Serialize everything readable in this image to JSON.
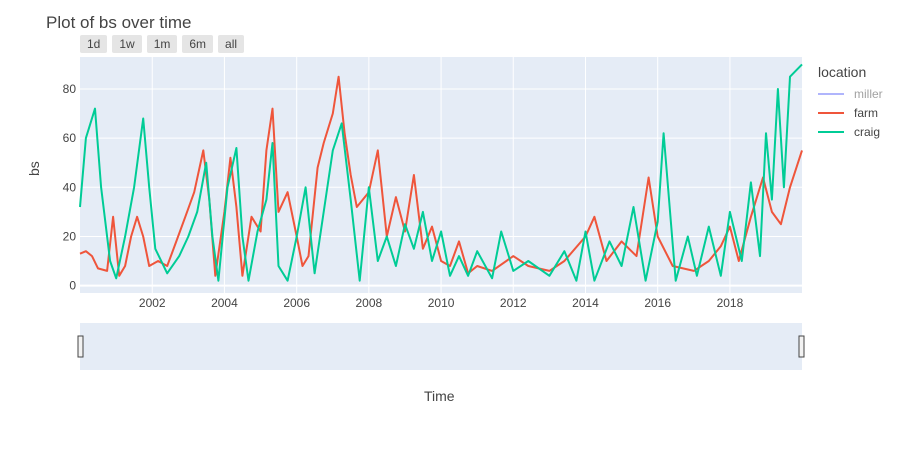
{
  "chart_data": {
    "type": "line",
    "title": "Plot of bs over time",
    "xlabel": "Time",
    "ylabel": "bs",
    "xlim": [
      "2000-01-01",
      "2019-12-31"
    ],
    "ylim": [
      -3,
      93
    ],
    "x_ticks": [
      "2002",
      "2004",
      "2006",
      "2008",
      "2010",
      "2012",
      "2014",
      "2016",
      "2018"
    ],
    "y_ticks": [
      0,
      20,
      40,
      60,
      80
    ],
    "grid": true,
    "legend_title": "location",
    "legend_position": "right",
    "range_buttons": [
      "1d",
      "1w",
      "1m",
      "6m",
      "all"
    ],
    "range_slider": true,
    "series": [
      {
        "name": "miller",
        "color": "#636efa",
        "visible": false,
        "points": []
      },
      {
        "name": "farm",
        "color": "#ef553b",
        "visible": true,
        "points": [
          [
            "2000-01-01",
            13
          ],
          [
            "2000-03-01",
            14
          ],
          [
            "2000-05-01",
            12
          ],
          [
            "2000-07-01",
            7
          ],
          [
            "2000-10-01",
            6
          ],
          [
            "2000-12-01",
            28
          ],
          [
            "2001-02-01",
            4
          ],
          [
            "2001-04-01",
            8
          ],
          [
            "2001-06-01",
            20
          ],
          [
            "2001-08-01",
            28
          ],
          [
            "2001-10-01",
            20
          ],
          [
            "2001-12-01",
            8
          ],
          [
            "2002-03-01",
            10
          ],
          [
            "2002-06-01",
            8
          ],
          [
            "2002-09-01",
            18
          ],
          [
            "2002-12-01",
            28
          ],
          [
            "2003-03-01",
            38
          ],
          [
            "2003-06-01",
            55
          ],
          [
            "2003-08-01",
            35
          ],
          [
            "2003-10-01",
            4
          ],
          [
            "2004-01-01",
            30
          ],
          [
            "2004-03-01",
            52
          ],
          [
            "2004-05-01",
            32
          ],
          [
            "2004-07-01",
            4
          ],
          [
            "2004-10-01",
            28
          ],
          [
            "2005-01-01",
            22
          ],
          [
            "2005-03-01",
            55
          ],
          [
            "2005-05-01",
            72
          ],
          [
            "2005-07-01",
            30
          ],
          [
            "2005-10-01",
            38
          ],
          [
            "2006-01-01",
            20
          ],
          [
            "2006-03-01",
            8
          ],
          [
            "2006-05-01",
            12
          ],
          [
            "2006-08-01",
            48
          ],
          [
            "2006-10-01",
            58
          ],
          [
            "2007-01-01",
            70
          ],
          [
            "2007-03-01",
            85
          ],
          [
            "2007-05-01",
            62
          ],
          [
            "2007-07-01",
            45
          ],
          [
            "2007-09-01",
            32
          ],
          [
            "2008-01-01",
            38
          ],
          [
            "2008-04-01",
            55
          ],
          [
            "2008-07-01",
            20
          ],
          [
            "2008-10-01",
            36
          ],
          [
            "2009-01-01",
            22
          ],
          [
            "2009-04-01",
            45
          ],
          [
            "2009-07-01",
            15
          ],
          [
            "2009-10-01",
            24
          ],
          [
            "2010-01-01",
            10
          ],
          [
            "2010-04-01",
            8
          ],
          [
            "2010-07-01",
            18
          ],
          [
            "2010-10-01",
            5
          ],
          [
            "2011-01-01",
            8
          ],
          [
            "2011-06-01",
            6
          ],
          [
            "2012-01-01",
            12
          ],
          [
            "2012-06-01",
            8
          ],
          [
            "2013-01-01",
            6
          ],
          [
            "2013-06-01",
            10
          ],
          [
            "2014-01-01",
            20
          ],
          [
            "2014-04-01",
            28
          ],
          [
            "2014-08-01",
            10
          ],
          [
            "2015-01-01",
            18
          ],
          [
            "2015-06-01",
            12
          ],
          [
            "2015-10-01",
            44
          ],
          [
            "2016-01-01",
            20
          ],
          [
            "2016-06-01",
            8
          ],
          [
            "2017-01-01",
            6
          ],
          [
            "2017-06-01",
            10
          ],
          [
            "2017-10-01",
            16
          ],
          [
            "2018-01-01",
            24
          ],
          [
            "2018-04-01",
            10
          ],
          [
            "2018-08-01",
            28
          ],
          [
            "2018-12-01",
            44
          ],
          [
            "2019-03-01",
            30
          ],
          [
            "2019-06-01",
            25
          ],
          [
            "2019-09-01",
            40
          ],
          [
            "2019-12-31",
            55
          ]
        ]
      },
      {
        "name": "craig",
        "color": "#00cc96",
        "visible": true,
        "points": [
          [
            "2000-01-01",
            32
          ],
          [
            "2000-03-01",
            60
          ],
          [
            "2000-06-01",
            72
          ],
          [
            "2000-08-01",
            40
          ],
          [
            "2000-11-01",
            10
          ],
          [
            "2001-01-01",
            3
          ],
          [
            "2001-04-01",
            20
          ],
          [
            "2001-07-01",
            40
          ],
          [
            "2001-10-01",
            68
          ],
          [
            "2001-12-01",
            40
          ],
          [
            "2002-02-01",
            15
          ],
          [
            "2002-06-01",
            5
          ],
          [
            "2002-10-01",
            12
          ],
          [
            "2003-01-01",
            20
          ],
          [
            "2003-04-01",
            30
          ],
          [
            "2003-07-01",
            50
          ],
          [
            "2003-09-01",
            20
          ],
          [
            "2003-11-01",
            2
          ],
          [
            "2004-02-01",
            40
          ],
          [
            "2004-05-01",
            56
          ],
          [
            "2004-07-01",
            20
          ],
          [
            "2004-09-01",
            2
          ],
          [
            "2004-12-01",
            22
          ],
          [
            "2005-03-01",
            35
          ],
          [
            "2005-05-01",
            58
          ],
          [
            "2005-07-01",
            8
          ],
          [
            "2005-10-01",
            2
          ],
          [
            "2006-01-01",
            20
          ],
          [
            "2006-04-01",
            40
          ],
          [
            "2006-07-01",
            5
          ],
          [
            "2006-10-01",
            30
          ],
          [
            "2007-01-01",
            55
          ],
          [
            "2007-04-01",
            66
          ],
          [
            "2007-07-01",
            35
          ],
          [
            "2007-10-01",
            2
          ],
          [
            "2008-01-01",
            40
          ],
          [
            "2008-04-01",
            10
          ],
          [
            "2008-07-01",
            20
          ],
          [
            "2008-10-01",
            8
          ],
          [
            "2009-01-01",
            25
          ],
          [
            "2009-04-01",
            15
          ],
          [
            "2009-07-01",
            30
          ],
          [
            "2009-10-01",
            10
          ],
          [
            "2010-01-01",
            22
          ],
          [
            "2010-04-01",
            4
          ],
          [
            "2010-07-01",
            12
          ],
          [
            "2010-10-01",
            4
          ],
          [
            "2011-01-01",
            14
          ],
          [
            "2011-06-01",
            3
          ],
          [
            "2011-09-01",
            22
          ],
          [
            "2012-01-01",
            6
          ],
          [
            "2012-06-01",
            10
          ],
          [
            "2013-01-01",
            4
          ],
          [
            "2013-06-01",
            14
          ],
          [
            "2013-10-01",
            2
          ],
          [
            "2014-01-01",
            22
          ],
          [
            "2014-04-01",
            2
          ],
          [
            "2014-09-01",
            18
          ],
          [
            "2015-01-01",
            8
          ],
          [
            "2015-05-01",
            32
          ],
          [
            "2015-09-01",
            2
          ],
          [
            "2016-01-01",
            26
          ],
          [
            "2016-03-01",
            62
          ],
          [
            "2016-07-01",
            2
          ],
          [
            "2016-11-01",
            20
          ],
          [
            "2017-02-01",
            4
          ],
          [
            "2017-06-01",
            24
          ],
          [
            "2017-10-01",
            4
          ],
          [
            "2018-01-01",
            30
          ],
          [
            "2018-05-01",
            10
          ],
          [
            "2018-08-01",
            42
          ],
          [
            "2018-11-01",
            12
          ],
          [
            "2019-01-01",
            62
          ],
          [
            "2019-03-01",
            35
          ],
          [
            "2019-05-01",
            80
          ],
          [
            "2019-07-01",
            40
          ],
          [
            "2019-09-01",
            85
          ],
          [
            "2019-12-31",
            90
          ]
        ]
      }
    ]
  }
}
